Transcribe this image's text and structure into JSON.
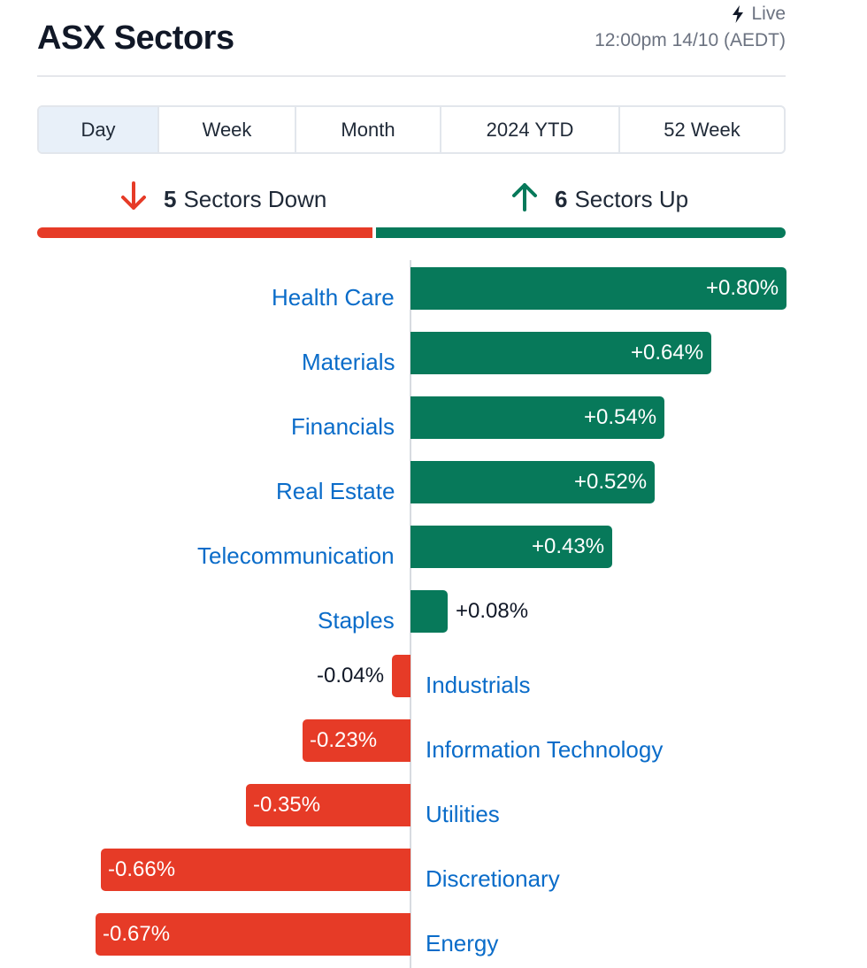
{
  "header": {
    "title": "ASX Sectors",
    "live_label": "Live",
    "timestamp": "12:00pm 14/10 (AEDT)"
  },
  "tabs": [
    {
      "label": "Day",
      "active": true
    },
    {
      "label": "Week",
      "active": false
    },
    {
      "label": "Month",
      "active": false
    },
    {
      "label": "2024 YTD",
      "active": false
    },
    {
      "label": "52 Week",
      "active": false
    }
  ],
  "summary": {
    "down_count": "5",
    "down_label": "Sectors Down",
    "up_count": "6",
    "up_label": "Sectors Up",
    "down_fraction": 0.45,
    "up_fraction": 0.55
  },
  "colors": {
    "positive": "#07795a",
    "negative": "#e63b27",
    "category_text": "#0a6cc9",
    "active_tab": "#e8f0f9"
  },
  "chart_data": {
    "type": "bar",
    "orientation": "horizontal",
    "categories": [
      "Health Care",
      "Materials",
      "Financials",
      "Real Estate",
      "Telecommunication",
      "Staples",
      "Industrials",
      "Information Technology",
      "Utilities",
      "Discretionary",
      "Energy"
    ],
    "values": [
      0.8,
      0.64,
      0.54,
      0.52,
      0.43,
      0.08,
      -0.04,
      -0.23,
      -0.35,
      -0.66,
      -0.67
    ],
    "value_labels": [
      "+0.80%",
      "+0.64%",
      "+0.54%",
      "+0.52%",
      "+0.43%",
      "+0.08%",
      "-0.04%",
      "-0.23%",
      "-0.35%",
      "-0.66%",
      "-0.67%"
    ],
    "unit": "%"
  }
}
